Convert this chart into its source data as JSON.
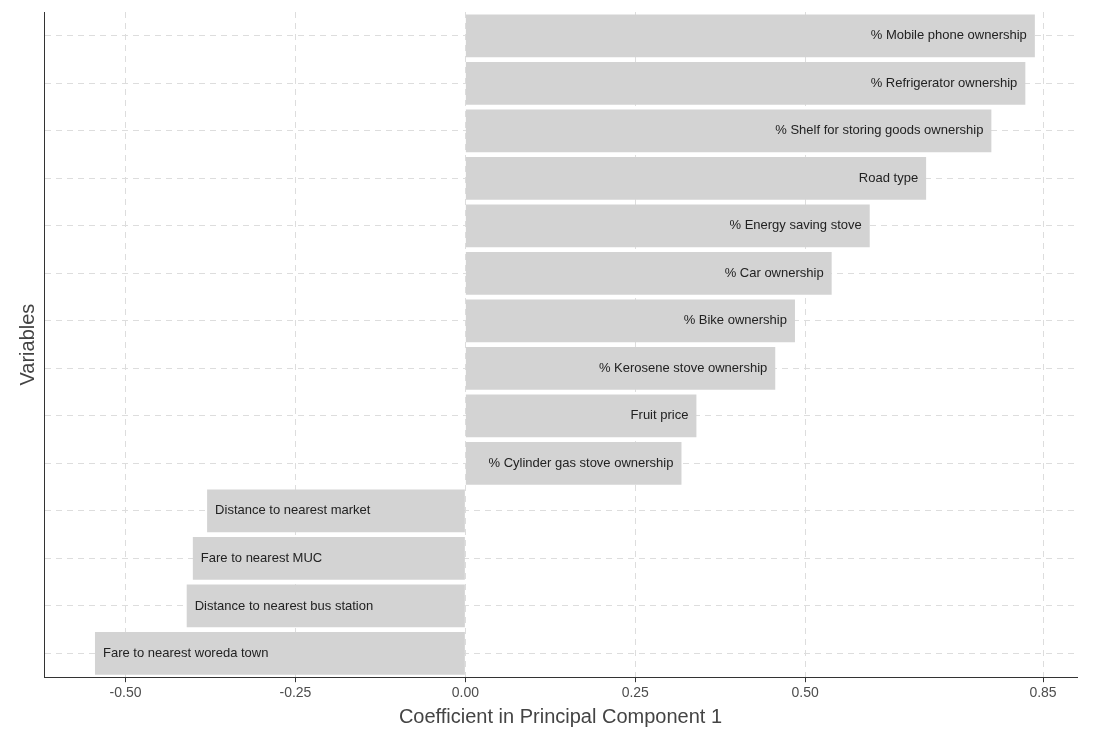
{
  "chart_data": {
    "type": "bar",
    "orientation": "horizontal",
    "xlabel": "Coefficient in Principal Component 1",
    "ylabel": "Variables",
    "categories": [
      "% Mobile phone ownership",
      "% Refrigerator ownership",
      "% Shelf for storing goods ownership",
      "Road type",
      "% Energy saving stove",
      "% Car ownership",
      "% Bike ownership",
      "% Kerosene stove ownership",
      "Fruit price",
      "% Cylinder gas stove ownership",
      "Distance to nearest market",
      "Fare to nearest MUC",
      "Distance to nearest bus station",
      "Fare to nearest woreda town"
    ],
    "values": [
      0.838,
      0.824,
      0.774,
      0.678,
      0.595,
      0.539,
      0.485,
      0.456,
      0.34,
      0.318,
      -0.38,
      -0.401,
      -0.41,
      -0.545
    ],
    "color": "#d3d3d3",
    "xlim": [
      -0.62,
      0.9
    ],
    "xticks": [
      {
        "value": -0.5,
        "label": "-0.50"
      },
      {
        "value": -0.25,
        "label": "-0.25"
      },
      {
        "value": 0,
        "label": "0.00"
      },
      {
        "value": 0.25,
        "label": "0.25"
      },
      {
        "value": 0.5,
        "label": "0.50"
      },
      0.85
    ],
    "grid": true,
    "tick_labels": "x",
    "legend": false
  }
}
